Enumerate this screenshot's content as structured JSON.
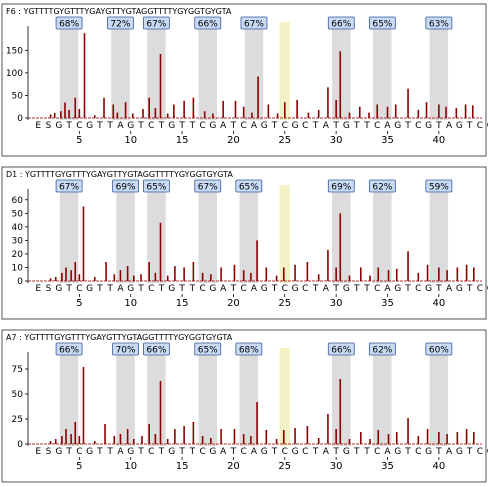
{
  "colors": {
    "trace": "#8b0000",
    "baseline": "#b03030",
    "highlight_grey": "#dcdcdc",
    "highlight_yellow": "#f4f2c4",
    "label_fill": "#c8daf4",
    "label_border": "#3a5a9a",
    "frame": "#555555",
    "text": "#000000"
  },
  "chart_data": [
    {
      "type": "bar",
      "title": "F6 : YGTTTTGYGTTTYGAYGTTYGTAGGTTTTYGYGGTGYGTA",
      "sequence": "ESGTCGTTAGTCTGTTCGATCAGTCGCTATGTTCAGTCGTAGTCG",
      "ylim": [
        0,
        195
      ],
      "y_ticks": [
        "0",
        "50",
        "100",
        "150"
      ],
      "y_tick_values": [
        0,
        50,
        100,
        150
      ],
      "x_ticks": [
        "5",
        "10",
        "15",
        "20",
        "25",
        "30",
        "35",
        "40"
      ],
      "x_tick_positions": [
        5,
        10,
        15,
        20,
        25,
        30,
        35,
        40
      ],
      "cpg_sites": [
        {
          "label": "68%",
          "pos": 4
        },
        {
          "label": "72%",
          "pos": 9
        },
        {
          "label": "67%",
          "pos": 12.5
        },
        {
          "label": "66%",
          "pos": 17.5
        },
        {
          "label": "67%",
          "pos": 22
        },
        {
          "label": "66%",
          "pos": 30.5
        },
        {
          "label": "65%",
          "pos": 34.5
        },
        {
          "label": "63%",
          "pos": 40
        }
      ],
      "yellow_pos": 25,
      "peaks": [
        {
          "pos": 2.2,
          "value": 8
        },
        {
          "pos": 2.6,
          "value": 11
        },
        {
          "pos": 3.2,
          "value": 15
        },
        {
          "pos": 3.6,
          "value": 34
        },
        {
          "pos": 4.0,
          "value": 18
        },
        {
          "pos": 4.6,
          "value": 45
        },
        {
          "pos": 5.0,
          "value": 20
        },
        {
          "pos": 5.5,
          "value": 188
        },
        {
          "pos": 6.5,
          "value": 6
        },
        {
          "pos": 7.4,
          "value": 45
        },
        {
          "pos": 8.3,
          "value": 30
        },
        {
          "pos": 8.7,
          "value": 12
        },
        {
          "pos": 9.5,
          "value": 35
        },
        {
          "pos": 10.2,
          "value": 10
        },
        {
          "pos": 11.2,
          "value": 20
        },
        {
          "pos": 11.8,
          "value": 45
        },
        {
          "pos": 12.4,
          "value": 22
        },
        {
          "pos": 12.9,
          "value": 142
        },
        {
          "pos": 13.6,
          "value": 10
        },
        {
          "pos": 14.2,
          "value": 30
        },
        {
          "pos": 15.2,
          "value": 38
        },
        {
          "pos": 16.1,
          "value": 45
        },
        {
          "pos": 17.2,
          "value": 15
        },
        {
          "pos": 18.0,
          "value": 10
        },
        {
          "pos": 19.0,
          "value": 38
        },
        {
          "pos": 20.2,
          "value": 38
        },
        {
          "pos": 21.0,
          "value": 25
        },
        {
          "pos": 21.8,
          "value": 12
        },
        {
          "pos": 22.4,
          "value": 92
        },
        {
          "pos": 23.4,
          "value": 30
        },
        {
          "pos": 24.3,
          "value": 10
        },
        {
          "pos": 25.0,
          "value": 35
        },
        {
          "pos": 26.2,
          "value": 40
        },
        {
          "pos": 27.3,
          "value": 12
        },
        {
          "pos": 28.3,
          "value": 18
        },
        {
          "pos": 29.2,
          "value": 68
        },
        {
          "pos": 30.0,
          "value": 40
        },
        {
          "pos": 30.4,
          "value": 148
        },
        {
          "pos": 31.3,
          "value": 12
        },
        {
          "pos": 32.3,
          "value": 25
        },
        {
          "pos": 33.2,
          "value": 12
        },
        {
          "pos": 34.0,
          "value": 30
        },
        {
          "pos": 35.0,
          "value": 25
        },
        {
          "pos": 35.8,
          "value": 30
        },
        {
          "pos": 37.0,
          "value": 65
        },
        {
          "pos": 38.0,
          "value": 18
        },
        {
          "pos": 38.8,
          "value": 35
        },
        {
          "pos": 40.0,
          "value": 30
        },
        {
          "pos": 40.7,
          "value": 25
        },
        {
          "pos": 41.7,
          "value": 22
        },
        {
          "pos": 42.6,
          "value": 30
        },
        {
          "pos": 43.3,
          "value": 28
        }
      ]
    },
    {
      "type": "bar",
      "title": "D1 : YGTTTTGYGTTTYGAYGTTYGTAGGTTTTYGYGGTGYGTA",
      "sequence": "ESGTCGTTAGTCTGTTCGATCAGTCGCTATGTTCAGTCGTAGTCG",
      "ylim": [
        0,
        65
      ],
      "y_ticks": [
        "0",
        "10",
        "20",
        "30",
        "40",
        "50",
        "60"
      ],
      "y_tick_values": [
        0,
        10,
        20,
        30,
        40,
        50,
        60
      ],
      "x_ticks": [
        "5",
        "10",
        "15",
        "20",
        "25",
        "30",
        "35",
        "40"
      ],
      "x_tick_positions": [
        5,
        10,
        15,
        20,
        25,
        30,
        35,
        40
      ],
      "cpg_sites": [
        {
          "label": "67%",
          "pos": 4
        },
        {
          "label": "69%",
          "pos": 9.5
        },
        {
          "label": "65%",
          "pos": 12.5
        },
        {
          "label": "67%",
          "pos": 17.5
        },
        {
          "label": "65%",
          "pos": 21.5
        },
        {
          "label": "69%",
          "pos": 30.5
        },
        {
          "label": "62%",
          "pos": 34.5
        },
        {
          "label": "59%",
          "pos": 40
        }
      ],
      "yellow_pos": 25,
      "peaks": [
        {
          "pos": 2.2,
          "value": 2
        },
        {
          "pos": 2.7,
          "value": 3
        },
        {
          "pos": 3.3,
          "value": 6
        },
        {
          "pos": 3.7,
          "value": 10
        },
        {
          "pos": 4.2,
          "value": 8
        },
        {
          "pos": 4.6,
          "value": 14
        },
        {
          "pos": 5.0,
          "value": 5
        },
        {
          "pos": 5.4,
          "value": 55
        },
        {
          "pos": 6.5,
          "value": 3
        },
        {
          "pos": 7.6,
          "value": 14
        },
        {
          "pos": 8.4,
          "value": 5
        },
        {
          "pos": 9.0,
          "value": 8
        },
        {
          "pos": 9.7,
          "value": 11
        },
        {
          "pos": 10.3,
          "value": 4
        },
        {
          "pos": 11.0,
          "value": 5
        },
        {
          "pos": 11.8,
          "value": 14
        },
        {
          "pos": 12.4,
          "value": 6
        },
        {
          "pos": 12.9,
          "value": 43
        },
        {
          "pos": 13.6,
          "value": 4
        },
        {
          "pos": 14.3,
          "value": 11
        },
        {
          "pos": 15.2,
          "value": 10
        },
        {
          "pos": 16.1,
          "value": 14
        },
        {
          "pos": 17.0,
          "value": 6
        },
        {
          "pos": 17.8,
          "value": 5
        },
        {
          "pos": 18.8,
          "value": 10
        },
        {
          "pos": 20.1,
          "value": 12
        },
        {
          "pos": 21.0,
          "value": 8
        },
        {
          "pos": 21.7,
          "value": 6
        },
        {
          "pos": 22.3,
          "value": 30
        },
        {
          "pos": 23.2,
          "value": 10
        },
        {
          "pos": 24.2,
          "value": 4
        },
        {
          "pos": 24.9,
          "value": 10
        },
        {
          "pos": 26.0,
          "value": 12
        },
        {
          "pos": 27.2,
          "value": 14
        },
        {
          "pos": 28.3,
          "value": 5
        },
        {
          "pos": 29.2,
          "value": 23
        },
        {
          "pos": 30.0,
          "value": 10
        },
        {
          "pos": 30.4,
          "value": 50
        },
        {
          "pos": 31.3,
          "value": 4
        },
        {
          "pos": 32.4,
          "value": 10
        },
        {
          "pos": 33.3,
          "value": 4
        },
        {
          "pos": 34.1,
          "value": 10
        },
        {
          "pos": 35.1,
          "value": 8
        },
        {
          "pos": 35.9,
          "value": 9
        },
        {
          "pos": 37.0,
          "value": 22
        },
        {
          "pos": 38.0,
          "value": 6
        },
        {
          "pos": 38.9,
          "value": 12
        },
        {
          "pos": 40.0,
          "value": 10
        },
        {
          "pos": 40.8,
          "value": 8
        },
        {
          "pos": 41.8,
          "value": 10
        },
        {
          "pos": 42.7,
          "value": 12
        },
        {
          "pos": 43.4,
          "value": 10
        }
      ]
    },
    {
      "type": "bar",
      "title": "A7 : YGTTTTGYGTTTYGAYGTTYGTAGGTTTTYGYGGTGYGTA",
      "sequence": "ESGTCGTTAGTCTGTTCGATCAGTCGCTATGTTCAGTCGTAGTCG",
      "ylim": [
        0,
        88
      ],
      "y_ticks": [
        "0",
        "25",
        "50",
        "75"
      ],
      "y_tick_values": [
        0,
        25,
        50,
        75
      ],
      "x_ticks": [
        "5",
        "10",
        "15",
        "20",
        "25",
        "30",
        "35",
        "40"
      ],
      "x_tick_positions": [
        5,
        10,
        15,
        20,
        25,
        30,
        35,
        40
      ],
      "cpg_sites": [
        {
          "label": "66%",
          "pos": 4
        },
        {
          "label": "70%",
          "pos": 9.5
        },
        {
          "label": "66%",
          "pos": 12.5
        },
        {
          "label": "65%",
          "pos": 17.5
        },
        {
          "label": "68%",
          "pos": 21.5
        },
        {
          "label": "66%",
          "pos": 30.5
        },
        {
          "label": "62%",
          "pos": 34.5
        },
        {
          "label": "60%",
          "pos": 40
        }
      ],
      "yellow_pos": 25,
      "peaks": [
        {
          "pos": 2.2,
          "value": 3
        },
        {
          "pos": 2.7,
          "value": 5
        },
        {
          "pos": 3.3,
          "value": 8
        },
        {
          "pos": 3.7,
          "value": 15
        },
        {
          "pos": 4.2,
          "value": 10
        },
        {
          "pos": 4.6,
          "value": 22
        },
        {
          "pos": 5.0,
          "value": 8
        },
        {
          "pos": 5.4,
          "value": 77
        },
        {
          "pos": 6.5,
          "value": 3
        },
        {
          "pos": 7.5,
          "value": 20
        },
        {
          "pos": 8.4,
          "value": 8
        },
        {
          "pos": 9.0,
          "value": 10
        },
        {
          "pos": 9.7,
          "value": 15
        },
        {
          "pos": 10.3,
          "value": 5
        },
        {
          "pos": 11.1,
          "value": 8
        },
        {
          "pos": 11.8,
          "value": 20
        },
        {
          "pos": 12.4,
          "value": 10
        },
        {
          "pos": 12.9,
          "value": 63
        },
        {
          "pos": 13.6,
          "value": 5
        },
        {
          "pos": 14.3,
          "value": 15
        },
        {
          "pos": 15.2,
          "value": 18
        },
        {
          "pos": 16.1,
          "value": 22
        },
        {
          "pos": 17.0,
          "value": 8
        },
        {
          "pos": 17.8,
          "value": 6
        },
        {
          "pos": 18.8,
          "value": 15
        },
        {
          "pos": 20.1,
          "value": 15
        },
        {
          "pos": 21.0,
          "value": 10
        },
        {
          "pos": 21.7,
          "value": 8
        },
        {
          "pos": 22.3,
          "value": 42
        },
        {
          "pos": 23.2,
          "value": 14
        },
        {
          "pos": 24.2,
          "value": 5
        },
        {
          "pos": 24.9,
          "value": 14
        },
        {
          "pos": 26.0,
          "value": 16
        },
        {
          "pos": 27.2,
          "value": 18
        },
        {
          "pos": 28.3,
          "value": 6
        },
        {
          "pos": 29.2,
          "value": 30
        },
        {
          "pos": 30.0,
          "value": 15
        },
        {
          "pos": 30.4,
          "value": 65
        },
        {
          "pos": 31.3,
          "value": 5
        },
        {
          "pos": 32.4,
          "value": 12
        },
        {
          "pos": 33.3,
          "value": 5
        },
        {
          "pos": 34.1,
          "value": 14
        },
        {
          "pos": 35.1,
          "value": 10
        },
        {
          "pos": 35.9,
          "value": 12
        },
        {
          "pos": 37.0,
          "value": 26
        },
        {
          "pos": 38.0,
          "value": 8
        },
        {
          "pos": 38.9,
          "value": 15
        },
        {
          "pos": 40.0,
          "value": 12
        },
        {
          "pos": 40.8,
          "value": 10
        },
        {
          "pos": 41.8,
          "value": 12
        },
        {
          "pos": 42.7,
          "value": 15
        },
        {
          "pos": 43.4,
          "value": 12
        }
      ]
    }
  ]
}
